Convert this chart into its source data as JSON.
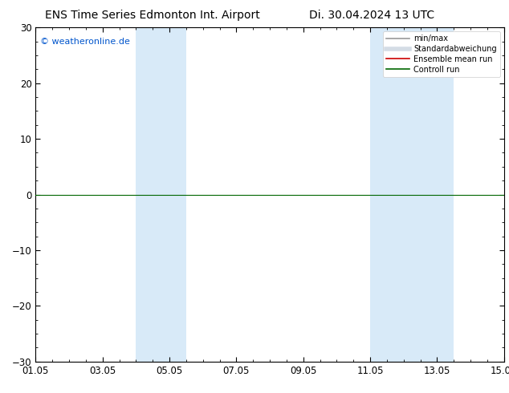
{
  "title_left": "ENS Time Series Edmonton Int. Airport",
  "title_right": "Di. 30.04.2024 13 UTC",
  "ylim": [
    -30,
    30
  ],
  "yticks": [
    -30,
    -20,
    -10,
    0,
    10,
    20,
    30
  ],
  "xtick_labels": [
    "01.05",
    "03.05",
    "05.05",
    "07.05",
    "09.05",
    "11.05",
    "13.05",
    "15.05"
  ],
  "xtick_positions": [
    0,
    2,
    4,
    6,
    8,
    10,
    12,
    14
  ],
  "x_min": 0,
  "x_max": 14,
  "shaded_bands": [
    {
      "x_start": 3.0,
      "x_end": 4.5
    },
    {
      "x_start": 10.0,
      "x_end": 12.5
    }
  ],
  "shade_color": "#d8eaf8",
  "zero_line_color": "#006600",
  "watermark_text": "© weatheronline.de",
  "watermark_color": "#0055cc",
  "legend_entries": [
    "min/max",
    "Standardabweichung",
    "Ensemble mean run",
    "Controll run"
  ],
  "legend_colors": [
    "#aaaaaa",
    "#b0c8d8",
    "#cc0000",
    "#006600"
  ],
  "background_color": "#ffffff",
  "title_fontsize": 10,
  "tick_fontsize": 8.5
}
